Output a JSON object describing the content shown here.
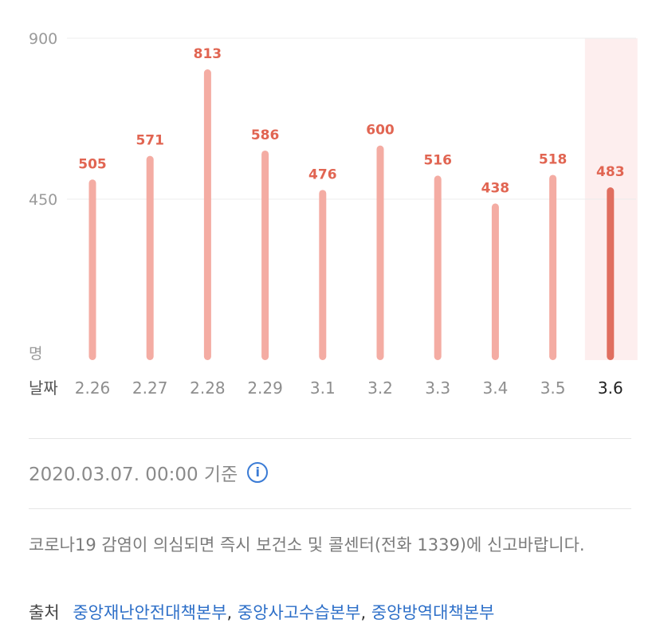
{
  "chart_data": {
    "type": "bar",
    "title": "",
    "xlabel": "날짜",
    "ylabel": "명",
    "ylim": [
      0,
      900
    ],
    "y_ticks": [
      900,
      450
    ],
    "categories": [
      "2.26",
      "2.27",
      "2.28",
      "2.29",
      "3.1",
      "3.2",
      "3.3",
      "3.4",
      "3.5",
      "3.6"
    ],
    "values": [
      505,
      571,
      813,
      586,
      476,
      600,
      516,
      438,
      518,
      483
    ],
    "highlighted_category": "3.6",
    "grid": true,
    "colors": {
      "bar": "#f4aca3",
      "bar_highlight": "#e06e5f",
      "highlight_band": "#fdeeee",
      "value_label": "#e16552"
    }
  },
  "footer": {
    "basis_text": "2020.03.07. 00:00 기준",
    "info_icon": "info-icon",
    "notice": "코로나19 감염이 의심되면 즉시 보건소 및 콜센터(전화 1339)에 신고바랍니다.",
    "source_label": "출처",
    "sources": [
      "중앙재난안전대책본부",
      "중앙사고수습본부",
      "중앙방역대책본부"
    ]
  }
}
